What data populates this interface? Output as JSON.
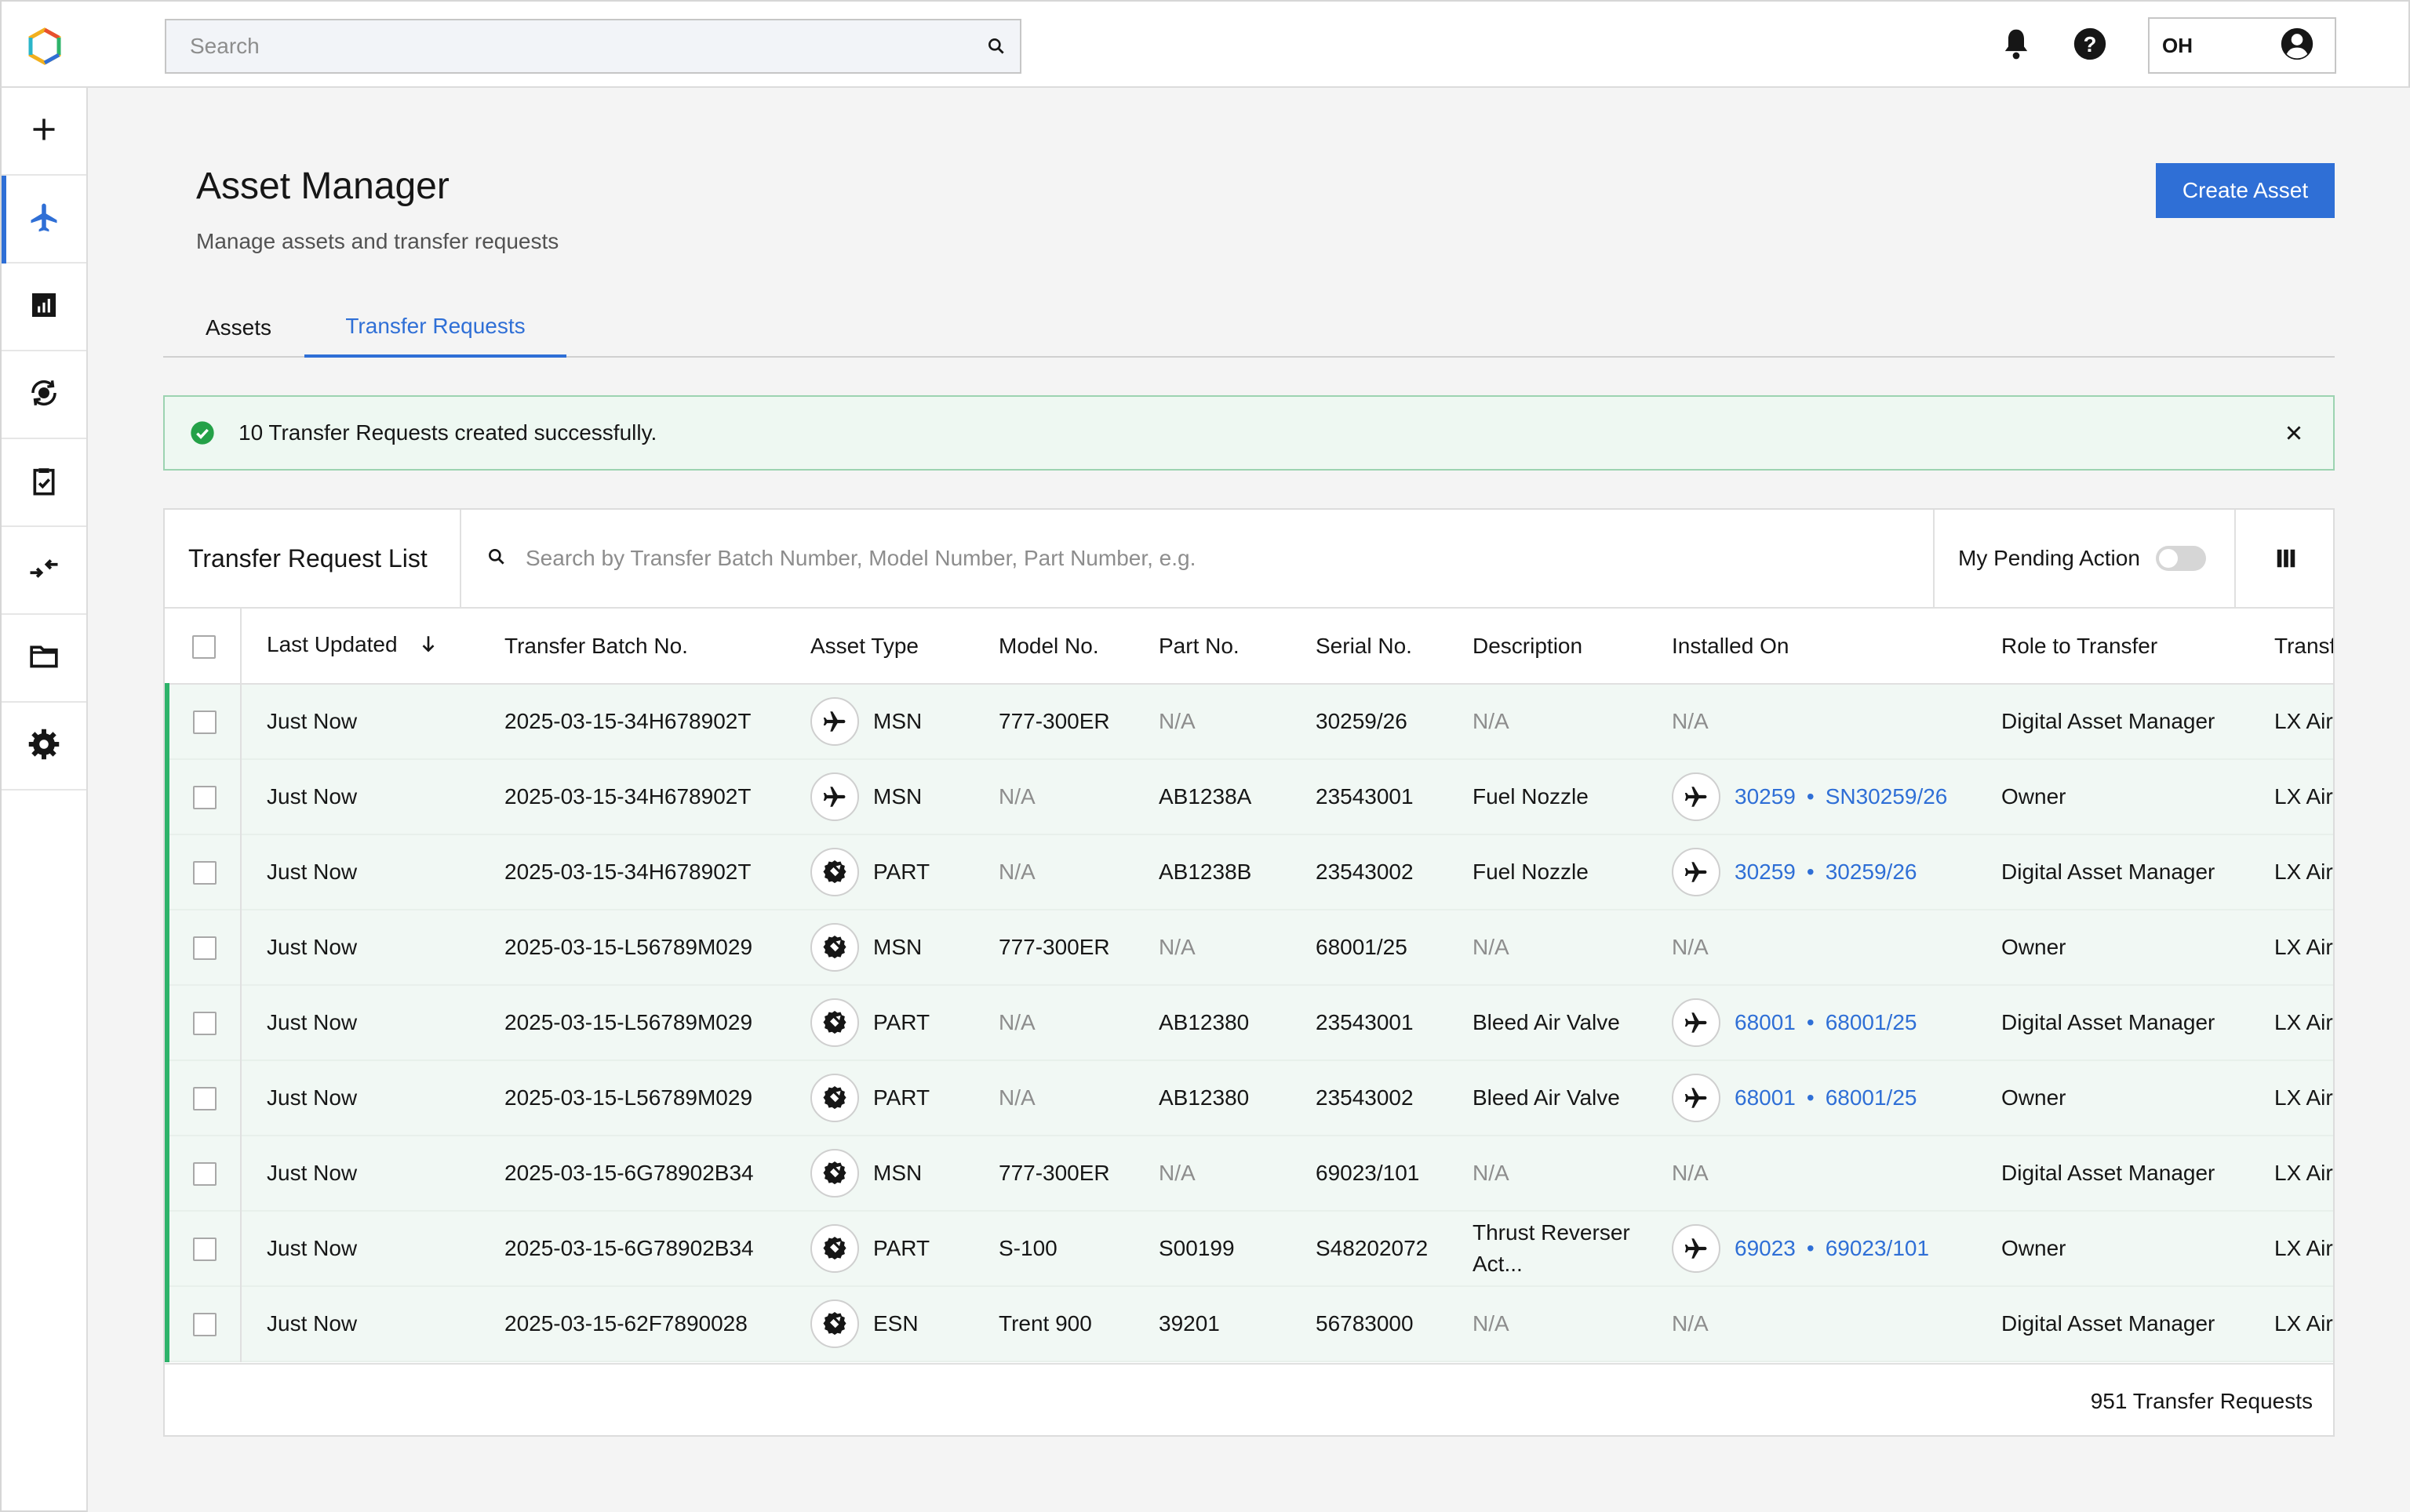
{
  "header": {
    "search_placeholder": "Search",
    "user_initials": "OH",
    "icons": [
      "bell-icon",
      "help-icon",
      "user-icon"
    ]
  },
  "sidenav": {
    "items": [
      {
        "icon": "plus-icon",
        "active": false
      },
      {
        "icon": "airplane-icon",
        "active": true
      },
      {
        "icon": "report-icon",
        "active": false
      },
      {
        "icon": "rotate-part-icon",
        "active": false
      },
      {
        "icon": "clipboard-check-icon",
        "active": false
      },
      {
        "icon": "transfer-arrows-icon",
        "active": false
      },
      {
        "icon": "folder-icon",
        "active": false
      },
      {
        "icon": "settings-icon",
        "active": false
      }
    ]
  },
  "page": {
    "title": "Asset Manager",
    "subtitle": "Manage assets and transfer requests",
    "create_button": "Create Asset"
  },
  "tabs": [
    {
      "label": "Assets",
      "active": false
    },
    {
      "label": "Transfer Requests",
      "active": true
    }
  ],
  "notification": {
    "message": "10 Transfer Requests created successfully."
  },
  "table": {
    "title": "Transfer Request List",
    "search_placeholder": "Search by Transfer Batch Number, Model Number, Part Number, e.g.",
    "pending_label": "My Pending Action",
    "columns": [
      "Last Updated",
      "Transfer Batch No.",
      "Asset Type",
      "Model No.",
      "Part No.",
      "Serial No.",
      "Description",
      "Installed On",
      "Role to Transfer",
      "Transfer To"
    ],
    "rows": [
      {
        "updated": "Just Now",
        "batch": "2025-03-15-34H678902T",
        "type_icon": "airplane-icon",
        "type": "MSN",
        "model": "777-300ER",
        "part": "N/A",
        "serial": "30259/26",
        "desc": "N/A",
        "inst_a": "",
        "inst_b": "",
        "inst_na": "N/A",
        "role": "Digital Asset Manager",
        "to": "LX Airways"
      },
      {
        "updated": "Just Now",
        "batch": "2025-03-15-34H678902T",
        "type_icon": "airplane-icon",
        "type": "MSN",
        "model": "N/A",
        "part": "AB1238A",
        "serial": "23543001",
        "desc": "Fuel Nozzle",
        "inst_a": "30259",
        "inst_b": "SN30259/26",
        "inst_na": "",
        "role": "Owner",
        "to": "LX Airways"
      },
      {
        "updated": "Just Now",
        "batch": "2025-03-15-34H678902T",
        "type_icon": "engine-part-icon",
        "type": "PART",
        "model": "N/A",
        "part": "AB1238B",
        "serial": "23543002",
        "desc": "Fuel Nozzle",
        "inst_a": "30259",
        "inst_b": "30259/26",
        "inst_na": "",
        "role": "Digital Asset Manager",
        "to": "LX Airways"
      },
      {
        "updated": "Just Now",
        "batch": "2025-03-15-L56789M029",
        "type_icon": "engine-part-icon",
        "type": "MSN",
        "model": "777-300ER",
        "part": "N/A",
        "serial": "68001/25",
        "desc": "N/A",
        "inst_a": "",
        "inst_b": "",
        "inst_na": "N/A",
        "role": "Owner",
        "to": "LX Airways"
      },
      {
        "updated": "Just Now",
        "batch": "2025-03-15-L56789M029",
        "type_icon": "engine-part-icon",
        "type": "PART",
        "model": "N/A",
        "part": "AB12380",
        "serial": "23543001",
        "desc": "Bleed Air Valve",
        "inst_a": "68001",
        "inst_b": "68001/25",
        "inst_na": "",
        "role": "Digital Asset Manager",
        "to": "LX Airways"
      },
      {
        "updated": "Just Now",
        "batch": "2025-03-15-L56789M029",
        "type_icon": "engine-part-icon",
        "type": "PART",
        "model": "N/A",
        "part": "AB12380",
        "serial": "23543002",
        "desc": "Bleed Air Valve",
        "inst_a": "68001",
        "inst_b": "68001/25",
        "inst_na": "",
        "role": "Owner",
        "to": "LX Airways"
      },
      {
        "updated": "Just Now",
        "batch": "2025-03-15-6G78902B34",
        "type_icon": "engine-part-icon",
        "type": "MSN",
        "model": "777-300ER",
        "part": "N/A",
        "serial": "69023/101",
        "desc": "N/A",
        "inst_a": "",
        "inst_b": "",
        "inst_na": "N/A",
        "role": "Digital Asset Manager",
        "to": "LX Airways"
      },
      {
        "updated": "Just Now",
        "batch": "2025-03-15-6G78902B34",
        "type_icon": "engine-part-icon",
        "type": "PART",
        "model": "S-100",
        "part": "S00199",
        "serial": "S48202072",
        "desc": "Thrust Reverser Act...",
        "inst_a": "69023",
        "inst_b": "69023/101",
        "inst_na": "",
        "role": "Owner",
        "to": "LX Airways"
      },
      {
        "updated": "Just Now",
        "batch": "2025-03-15-62F7890028",
        "type_icon": "engine-part-icon",
        "type": "ESN",
        "model": "Trent 900",
        "part": "39201",
        "serial": "56783000",
        "desc": "N/A",
        "inst_a": "",
        "inst_b": "",
        "inst_na": "N/A",
        "role": "Digital Asset Manager",
        "to": "LX Airways"
      }
    ],
    "footer": "951 Transfer Requests"
  }
}
